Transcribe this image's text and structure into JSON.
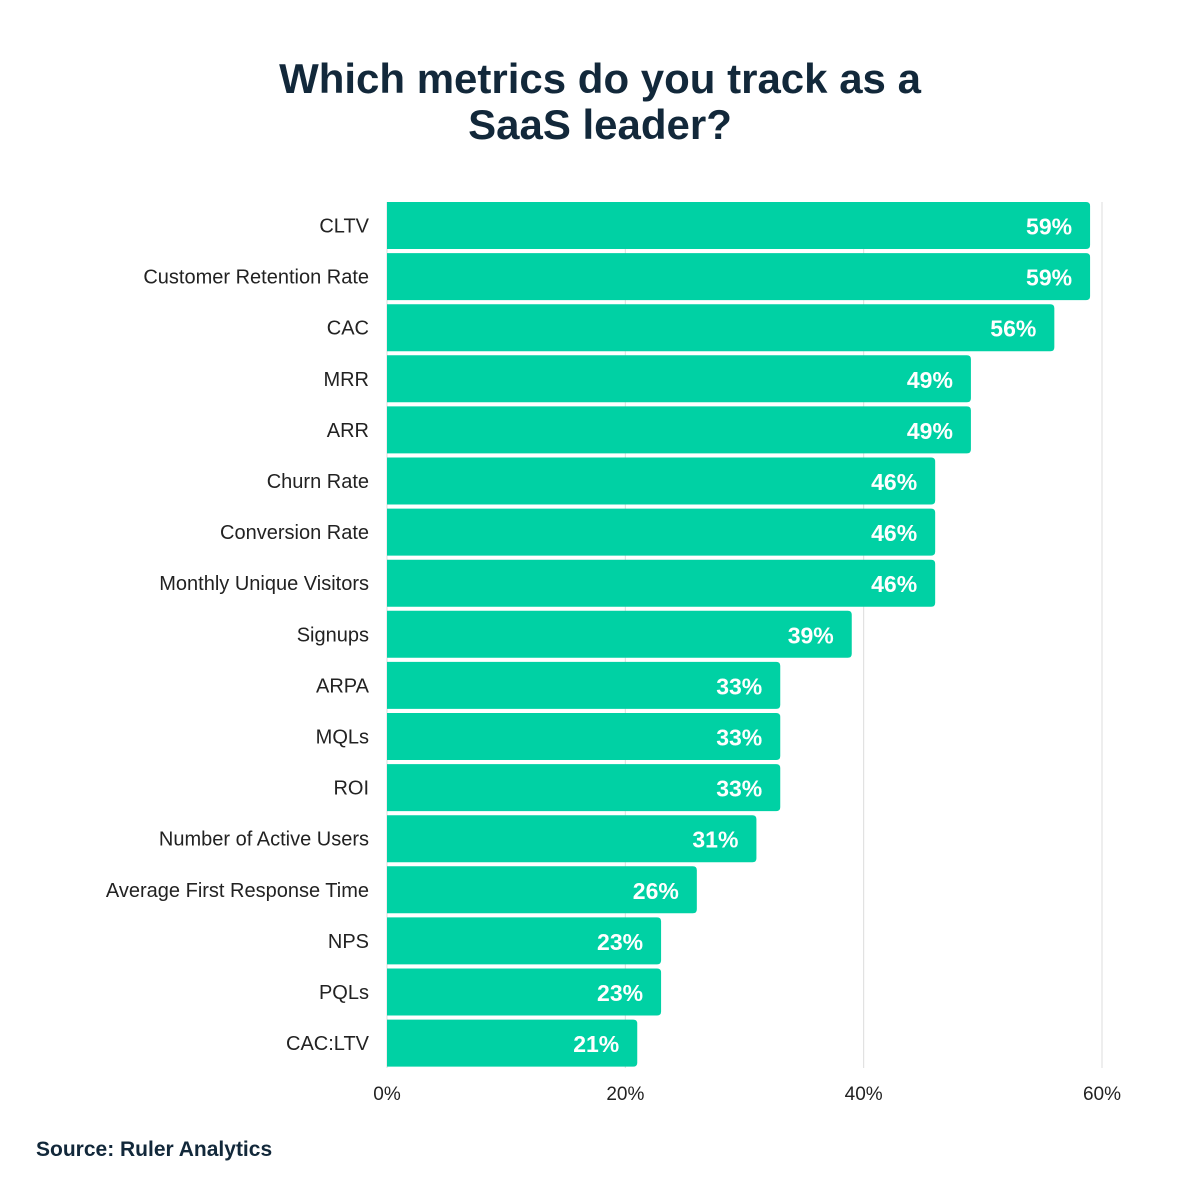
{
  "chart_data": {
    "type": "bar",
    "orientation": "horizontal",
    "title": "Which metrics do you track as a SaaS leader?",
    "categories": [
      "CLTV",
      "Customer Retention Rate",
      "CAC",
      "MRR",
      "ARR",
      "Churn Rate",
      "Conversion Rate",
      "Monthly Unique Visitors",
      "Signups",
      "ARPA",
      "MQLs",
      "ROI",
      "Number of Active Users",
      "Average First Response Time",
      "NPS",
      "PQLs",
      "CAC:LTV"
    ],
    "values": [
      59,
      59,
      56,
      49,
      49,
      46,
      46,
      46,
      39,
      33,
      33,
      33,
      31,
      26,
      23,
      23,
      21
    ],
    "data_labels": [
      "59%",
      "59%",
      "56%",
      "49%",
      "49%",
      "46%",
      "46%",
      "46%",
      "39%",
      "33%",
      "33%",
      "33%",
      "31%",
      "26%",
      "23%",
      "23%",
      "21%"
    ],
    "xlim": [
      0,
      60
    ],
    "xticks": [
      0,
      20,
      40,
      60
    ],
    "xtick_labels": [
      "0%",
      "20%",
      "40%",
      "60%"
    ],
    "grid": "vertical",
    "bar_color": "#00d1a4",
    "xlabel": "",
    "ylabel": ""
  },
  "source": "Source: Ruler Analytics"
}
